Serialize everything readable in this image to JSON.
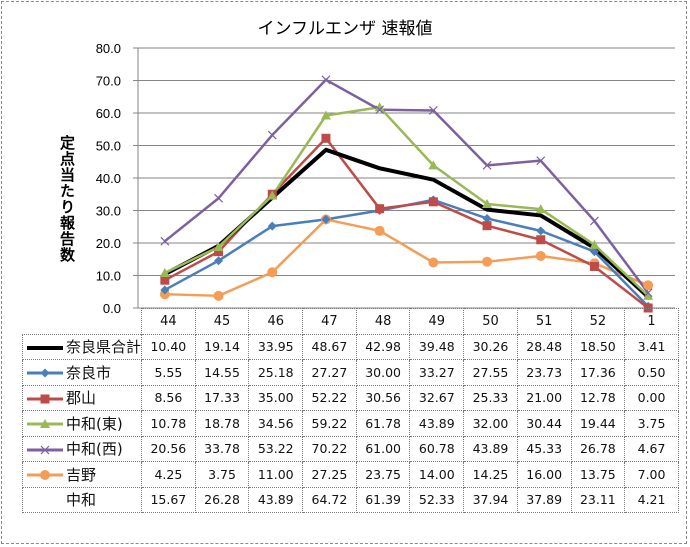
{
  "chart_data": {
    "type": "line",
    "title": "インフルエンザ 速報値",
    "xlabel": "",
    "ylabel": "定点当たり報告数",
    "ylim": [
      0,
      80
    ],
    "yticks": [
      "0.0",
      "10.0",
      "20.0",
      "30.0",
      "40.0",
      "50.0",
      "60.0",
      "70.0",
      "80.0"
    ],
    "grid": true,
    "legend": "data-table-below",
    "categories": [
      "44",
      "45",
      "46",
      "47",
      "48",
      "49",
      "50",
      "51",
      "52",
      "1"
    ],
    "series": [
      {
        "name": "奈良県合計",
        "color": "#000000",
        "marker": "none",
        "width": 4,
        "values": [
          10.4,
          19.14,
          33.95,
          48.67,
          42.98,
          39.48,
          30.26,
          28.48,
          18.5,
          3.41
        ]
      },
      {
        "name": "奈良市",
        "color": "#4a7ebb",
        "marker": "diamond",
        "values": [
          5.55,
          14.55,
          25.18,
          27.27,
          30.0,
          33.27,
          27.55,
          23.73,
          17.36,
          0.5
        ]
      },
      {
        "name": "郡山",
        "color": "#be4b48",
        "marker": "square",
        "values": [
          8.56,
          17.33,
          35.0,
          52.22,
          30.56,
          32.67,
          25.33,
          21.0,
          12.78,
          0.0
        ]
      },
      {
        "name": "中和(東)",
        "color": "#98b954",
        "marker": "triangle",
        "values": [
          10.78,
          18.78,
          34.56,
          59.22,
          61.78,
          43.89,
          32.0,
          30.44,
          19.44,
          3.75
        ]
      },
      {
        "name": "中和(西)",
        "color": "#7d60a0",
        "marker": "x",
        "values": [
          20.56,
          33.78,
          53.22,
          70.22,
          61.0,
          60.78,
          43.89,
          45.33,
          26.78,
          4.67
        ]
      },
      {
        "name": "吉野",
        "color": "#f59d56",
        "marker": "circle",
        "values": [
          4.25,
          3.75,
          11.0,
          27.25,
          23.75,
          14.0,
          14.25,
          16.0,
          13.75,
          7.0
        ]
      },
      {
        "name": "中和",
        "color": "none",
        "marker": "none",
        "hidden_line": true,
        "values": [
          15.67,
          26.28,
          43.89,
          64.72,
          61.39,
          52.33,
          37.94,
          37.89,
          23.11,
          4.21
        ]
      }
    ]
  }
}
